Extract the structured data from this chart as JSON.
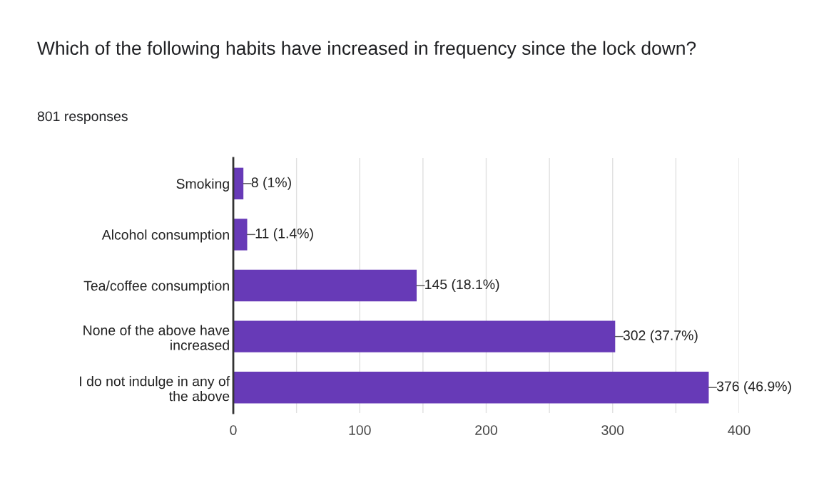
{
  "chart_data": {
    "type": "bar",
    "orientation": "horizontal",
    "title": "Which of the following habits have increased in frequency since the lock down?",
    "subtitle": "801 responses",
    "categories": [
      "Smoking",
      "Alcohol consumption",
      "Tea/coffee consumption",
      "None of the above have\nincreased",
      "I do not indulge in any of\nthe above"
    ],
    "values": [
      8,
      11,
      145,
      302,
      376
    ],
    "value_labels": [
      "8 (1%)",
      "11 (1.4%)",
      "145 (18.1%)",
      "302 (37.7%)",
      "376 (46.9%)"
    ],
    "color": "#673ab7",
    "xlim": [
      0,
      400
    ],
    "xticks": [
      0,
      {
        "value": 50,
        "label": null
      },
      100,
      {
        "value": 150,
        "label": null
      },
      200,
      {
        "value": 250,
        "label": null
      },
      300,
      {
        "value": 350,
        "label": null
      },
      400
    ],
    "grid": "x"
  }
}
